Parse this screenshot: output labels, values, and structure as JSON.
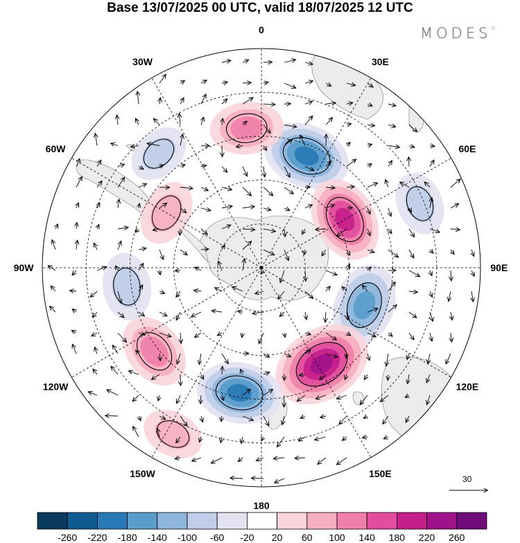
{
  "header": {
    "title": "Base 13/07/2025 00 UTC, valid 18/07/2025 12 UTC",
    "brand": "MODES",
    "brand_mark": "©"
  },
  "map": {
    "projection": "south-polar-stereographic",
    "longitude_labels": [
      "0",
      "30E",
      "60E",
      "90E",
      "120E",
      "150E",
      "180",
      "150W",
      "120W",
      "90W",
      "60W",
      "30W"
    ],
    "field": "geopotential-height-anomaly",
    "anomaly_centres": [
      {
        "sign": "negative",
        "lon": 22,
        "ring": 0.55,
        "value": -190
      },
      {
        "sign": "positive",
        "lon": 60,
        "ring": 0.44,
        "value": 180
      },
      {
        "sign": "negative",
        "lon": 110,
        "ring": 0.5,
        "value": -170
      },
      {
        "sign": "positive",
        "lon": 148,
        "ring": 0.52,
        "value": 250
      },
      {
        "sign": "negative",
        "lon": 190,
        "ring": 0.58,
        "value": -180
      },
      {
        "sign": "positive",
        "lon": 232,
        "ring": 0.62,
        "value": 130
      },
      {
        "sign": "negative",
        "lon": 262,
        "ring": 0.62,
        "value": -90
      },
      {
        "sign": "positive",
        "lon": 354,
        "ring": 0.64,
        "value": 120
      },
      {
        "sign": "negative",
        "lon": 318,
        "ring": 0.7,
        "value": -60
      },
      {
        "sign": "positive",
        "lon": 300,
        "ring": 0.5,
        "value": 80
      },
      {
        "sign": "negative",
        "lon": 68,
        "ring": 0.78,
        "value": -70
      },
      {
        "sign": "positive",
        "lon": 208,
        "ring": 0.86,
        "value": 60
      }
    ],
    "wind_reference": {
      "value": "30",
      "arrow_label": "30"
    }
  },
  "colorbar": {
    "ticks": [
      "-260",
      "-220",
      "-180",
      "-140",
      "-100",
      "-60",
      "-20",
      "20",
      "60",
      "100",
      "140",
      "180",
      "220",
      "260"
    ],
    "colors": [
      "#0a3b5c",
      "#0f5a8e",
      "#2879b5",
      "#5a9ccb",
      "#8eb6dc",
      "#bfcde8",
      "#e2e2f1",
      "#ffffff",
      "#f9d5db",
      "#f6afc0",
      "#f080aa",
      "#e24e9d",
      "#c51f8b",
      "#a0128a",
      "#6f0c78"
    ]
  }
}
